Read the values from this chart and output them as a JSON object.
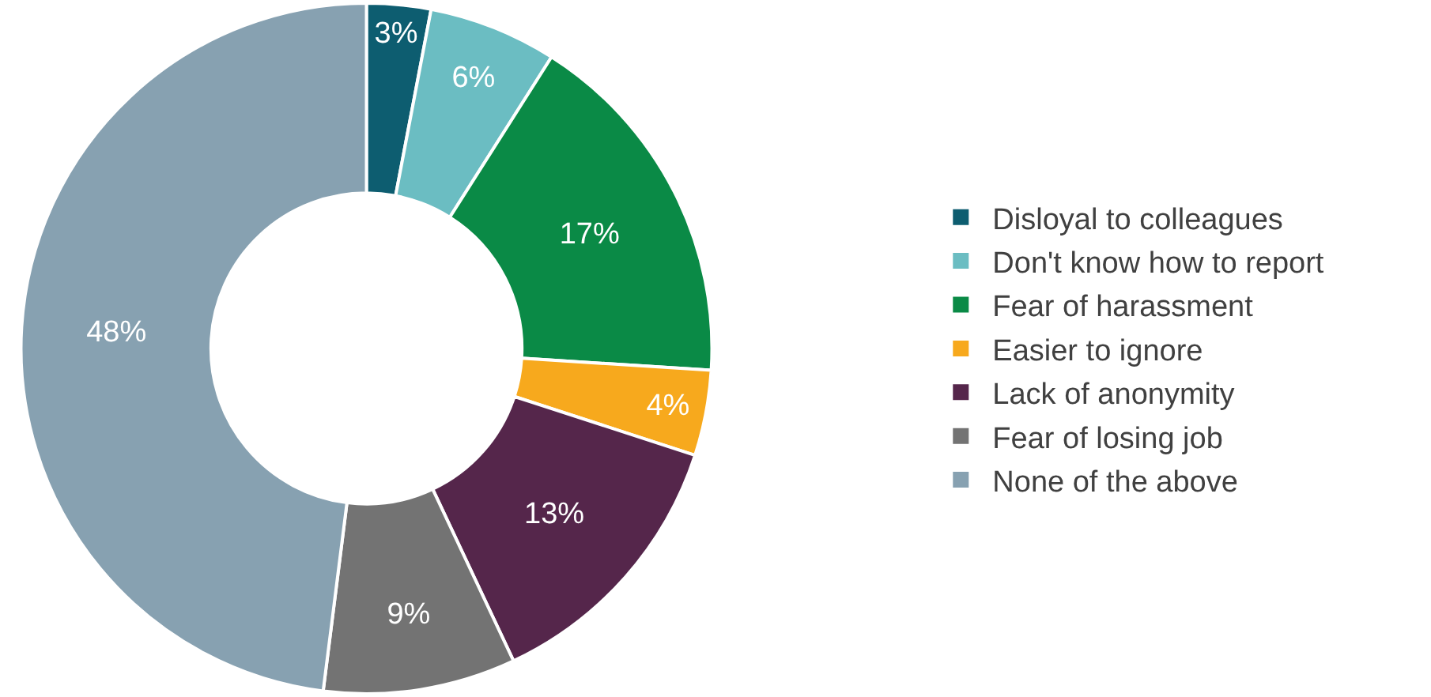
{
  "chart_data": {
    "type": "donut",
    "categories": [
      "Disloyal to colleagues",
      "Don't know how to report",
      "Fear of harassment",
      "Easier to ignore",
      "Lack of anonymity",
      "Fear of losing job",
      "None of the above"
    ],
    "values": [
      3,
      6,
      17,
      4,
      13,
      9,
      48
    ],
    "value_labels": [
      "3%",
      "6%",
      "17%",
      "4%",
      "13%",
      "9%",
      "48%"
    ],
    "colors": [
      "#0d5d70",
      "#6bbdc2",
      "#0a8a46",
      "#f7a91d",
      "#55264b",
      "#737373",
      "#87a1b1"
    ],
    "legend": "right"
  }
}
